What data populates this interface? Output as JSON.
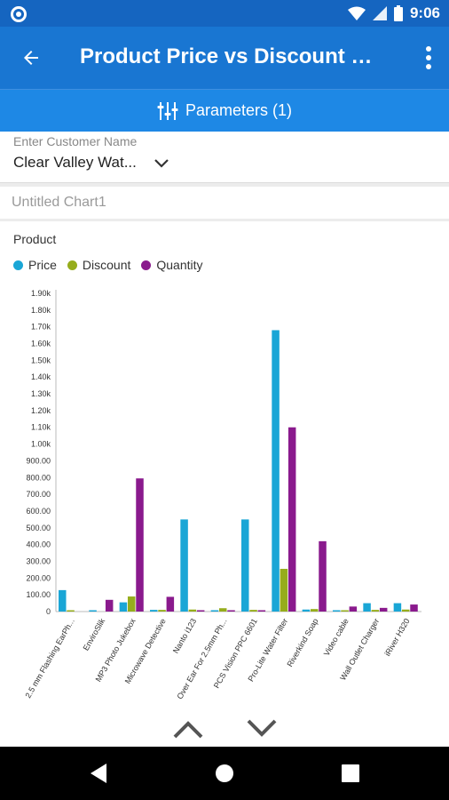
{
  "status": {
    "time": "9:06"
  },
  "app_bar": {
    "title": "Product Price vs Discount C..."
  },
  "parameters": {
    "label": "Parameters (1)"
  },
  "customer": {
    "caption": "Enter Customer Name",
    "value": "Clear Valley Wat..."
  },
  "chart_name": "Untitled Chart1",
  "colors": {
    "price": "#1aa6d6",
    "discount": "#96ad1c",
    "quantity": "#8a1a8d",
    "primary": "#1976d2"
  },
  "chart_data": {
    "type": "bar",
    "xlabel": "Product",
    "ylabel": "",
    "ylim": [
      0,
      1900
    ],
    "y_ticks": [
      "0",
      "100.00",
      "200.00",
      "300.00",
      "400.00",
      "500.00",
      "600.00",
      "700.00",
      "800.00",
      "900.00",
      "1.00k",
      "1.10k",
      "1.20k",
      "1.30k",
      "1.40k",
      "1.50k",
      "1.60k",
      "1.70k",
      "1.80k",
      "1.90k"
    ],
    "legend_position": "top-left",
    "categories": [
      "2.5 mm Flashing EarPh...",
      "EnviroSlik",
      "MP3 Photo Jukebox",
      "Microwave Detective",
      "Nanto i123",
      "Over Ear For 2.5mm Ph...",
      "PCS Vision PPC 6601",
      "Pro-Lite Water Filter",
      "Riverkind Soap",
      "Video cable",
      "Wall Outlet Charger",
      "iRiver H320"
    ],
    "series": [
      {
        "name": "Price",
        "values": [
          128,
          2,
          55,
          10,
          550,
          8,
          550,
          1680,
          12,
          5,
          50,
          50
        ]
      },
      {
        "name": "Discount",
        "values": [
          3,
          0,
          90,
          10,
          12,
          20,
          10,
          255,
          15,
          5,
          10,
          12
        ]
      },
      {
        "name": "Quantity",
        "values": [
          0,
          70,
          795,
          88,
          2,
          5,
          5,
          1100,
          420,
          30,
          22,
          42
        ]
      }
    ]
  }
}
